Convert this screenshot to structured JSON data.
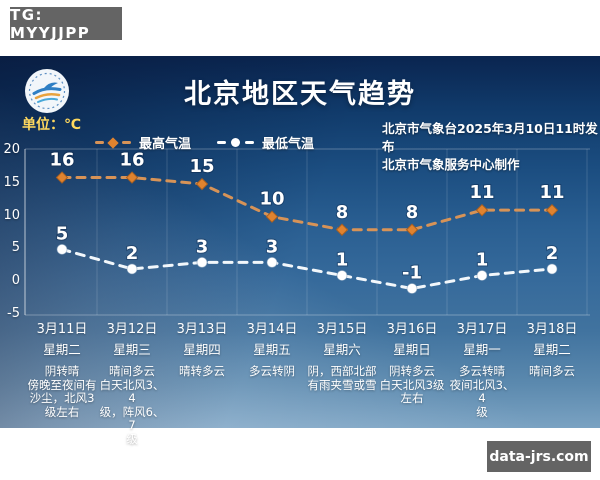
{
  "watermarks": {
    "tg": "TG: MYYJJPP",
    "site": "data-jrs.com"
  },
  "header": {
    "title": "北京地区天气趋势",
    "unit_label": "单位：℃",
    "issued_line1": "北京市气象台2025年3月10日11时发布",
    "issued_line2": "北京市气象服务中心制作",
    "logo_name": "beijing-meteorological-service-logo"
  },
  "legend": {
    "max_label": "最高气温",
    "min_label": "最低气温",
    "max_color": "#e0832f",
    "max_line_color": "#d79357",
    "min_color": "#ffffff",
    "min_line_color": "#f2f7fb"
  },
  "chart_data": {
    "type": "line",
    "title": "北京地区天气趋势",
    "unit": "℃",
    "categories": [
      "3月11日",
      "3月12日",
      "3月13日",
      "3月14日",
      "3月15日",
      "3月16日",
      "3月17日",
      "3月18日"
    ],
    "weekdays": [
      "星期二",
      "星期三",
      "星期四",
      "星期五",
      "星期六",
      "星期日",
      "星期一",
      "星期二"
    ],
    "series": [
      {
        "name": "最高气温",
        "marker": "diamond",
        "values": [
          16,
          16,
          15,
          10,
          8,
          8,
          11,
          11
        ]
      },
      {
        "name": "最低气温",
        "marker": "circle",
        "values": [
          5,
          2,
          3,
          3,
          1,
          -1,
          1,
          2
        ]
      }
    ],
    "descriptions": [
      "阴转晴\n傍晚至夜间有\n沙尘，北风3\n级左右",
      "晴间多云\n白天北风3、4\n级，阵风6、7\n级",
      "晴转多云",
      "多云转阴",
      "阴，西部北部\n有雨夹雪或雪",
      "阴转多云\n白天北风3级\n左右",
      "多云转晴\n夜间北风3、4\n级",
      "晴间多云"
    ],
    "yticks": [
      20,
      15,
      10,
      5,
      0,
      -5
    ],
    "ylim": [
      -5,
      20
    ],
    "grid": "faint-vertical-column-separators",
    "legend_position": "top-left"
  }
}
